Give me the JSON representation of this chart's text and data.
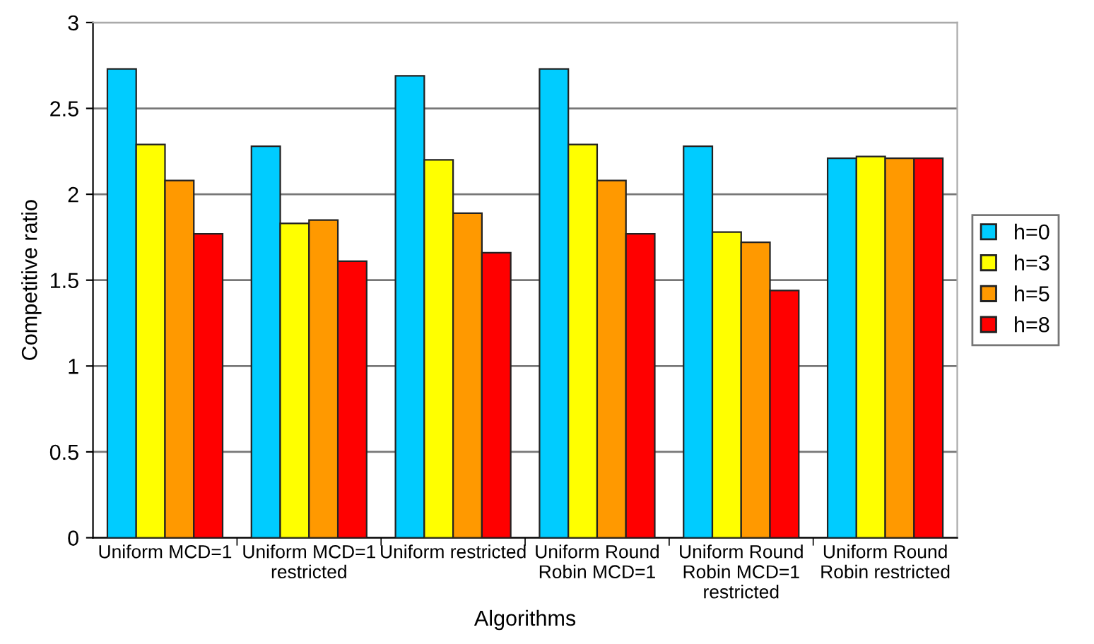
{
  "chart_data": {
    "type": "bar",
    "xlabel": "Algorithms",
    "ylabel": "Competitive ratio",
    "categories": [
      "Uniform MCD=1",
      "Uniform MCD=1\nrestricted",
      "Uniform restricted",
      "Uniform Round\nRobin MCD=1",
      "Uniform Round\nRobin MCD=1\nrestricted",
      "Uniform Round\nRobin restricted"
    ],
    "series": [
      {
        "name": "h=0",
        "color": "#00ccff",
        "values": [
          2.73,
          2.28,
          2.69,
          2.73,
          2.28,
          2.21
        ]
      },
      {
        "name": "h=3",
        "color": "#ffff00",
        "values": [
          2.29,
          1.83,
          2.2,
          2.29,
          1.78,
          2.22
        ]
      },
      {
        "name": "h=5",
        "color": "#ff9900",
        "values": [
          2.08,
          1.85,
          1.89,
          2.08,
          1.72,
          2.21
        ]
      },
      {
        "name": "h=8",
        "color": "#ff0000",
        "values": [
          1.77,
          1.61,
          1.66,
          1.77,
          1.44,
          2.21
        ]
      }
    ],
    "ylim": [
      0,
      3
    ],
    "yticks": [
      0,
      0.5,
      1,
      1.5,
      2,
      2.5,
      3
    ],
    "grid": "y",
    "legend": "right"
  }
}
